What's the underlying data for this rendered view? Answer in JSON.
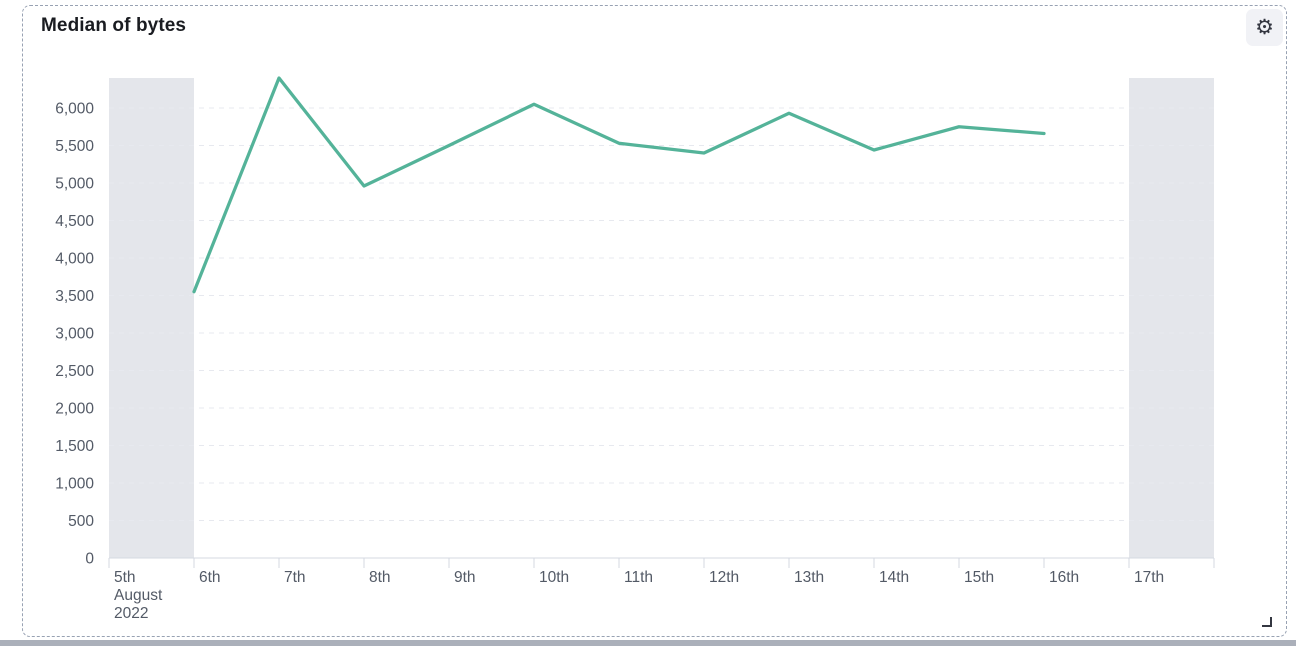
{
  "panel": {
    "title": "Median of bytes"
  },
  "icons": {
    "settings": "⚙"
  },
  "chart_data": {
    "type": "line",
    "title": "Median of bytes",
    "categories": [
      "5th",
      "6th",
      "7th",
      "8th",
      "9th",
      "10th",
      "11th",
      "12th",
      "13th",
      "14th",
      "15th",
      "16th",
      "17th"
    ],
    "x_tick_labels": [
      [
        "5th",
        "August",
        "2022"
      ],
      [
        "6th"
      ],
      [
        "7th"
      ],
      [
        "8th"
      ],
      [
        "9th"
      ],
      [
        "10th"
      ],
      [
        "11th"
      ],
      [
        "12th"
      ],
      [
        "13th"
      ],
      [
        "14th"
      ],
      [
        "15th"
      ],
      [
        "16th"
      ],
      [
        "17th"
      ]
    ],
    "series": [
      {
        "name": "Median of bytes",
        "values": [
          null,
          3550,
          6400,
          4960,
          5500,
          6050,
          5530,
          5400,
          5930,
          5440,
          5750,
          5660,
          null
        ]
      }
    ],
    "ylim": [
      0,
      6400
    ],
    "y_ticks": [
      0,
      500,
      1000,
      1500,
      2000,
      2500,
      3000,
      3500,
      4000,
      4500,
      5000,
      5500,
      6000
    ],
    "y_tick_labels": [
      "0",
      "500",
      "1,000",
      "1,500",
      "2,000",
      "2,500",
      "3,000",
      "3,500",
      "4,000",
      "4,500",
      "5,000",
      "5,500",
      "6,000"
    ],
    "xlabel": "",
    "ylabel": "",
    "grid": "horizontal-dashed",
    "legend": "none",
    "line_color": "#54B399",
    "partial_bucket_band_indices": [
      0,
      12
    ],
    "band_color": "#E4E6EB",
    "grid_color": "#E7E9EF",
    "axis_line_color": "#D4D9E2",
    "axis_label_color": "#535A66"
  }
}
